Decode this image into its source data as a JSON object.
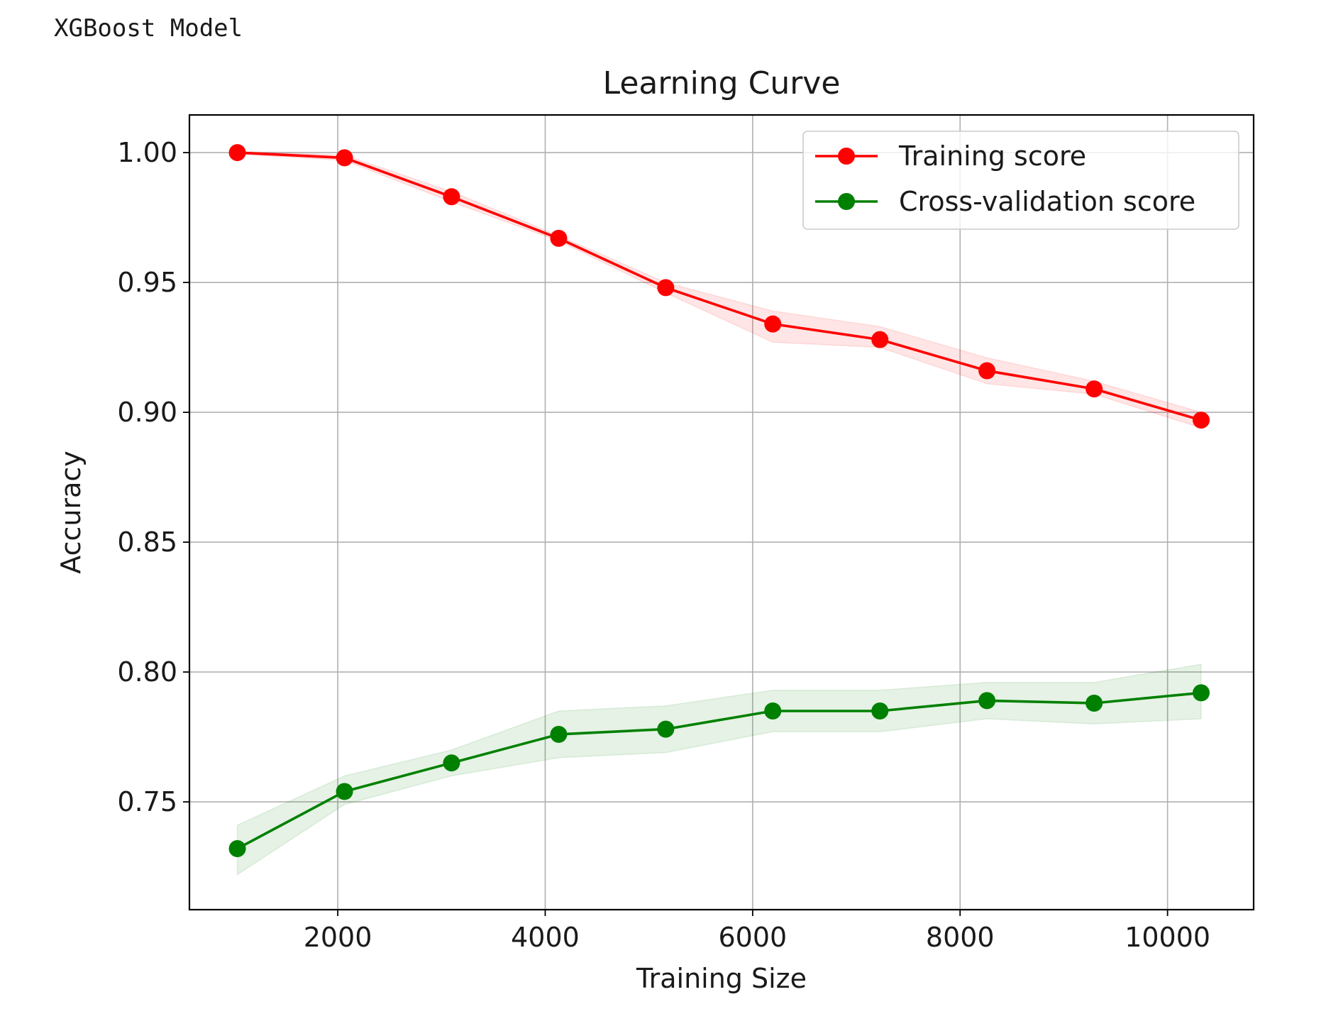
{
  "output_caption": "XGBoost Model",
  "chart_data": {
    "type": "line",
    "title": "Learning Curve",
    "xlabel": "Training Size",
    "ylabel": "Accuracy",
    "xlim": [
      570,
      10830
    ],
    "ylim": [
      0.7085,
      1.0145
    ],
    "xticks": [
      2000,
      4000,
      6000,
      8000,
      10000
    ],
    "xtick_labels": [
      "2000",
      "4000",
      "6000",
      "8000",
      "10000"
    ],
    "yticks": [
      0.75,
      0.8,
      0.85,
      0.9,
      0.95,
      1.0
    ],
    "ytick_labels": [
      "0.75",
      "0.80",
      "0.85",
      "0.90",
      "0.95",
      "1.00"
    ],
    "grid": true,
    "legend_position": "upper-right",
    "x": [
      1032,
      2065,
      3097,
      4130,
      5162,
      6194,
      7227,
      8259,
      9292,
      10324
    ],
    "series": [
      {
        "name": "Training score",
        "color": "#ff0000",
        "values": [
          1.0,
          0.998,
          0.983,
          0.967,
          0.948,
          0.934,
          0.928,
          0.916,
          0.909,
          0.897
        ],
        "band_lower": [
          0.9995,
          0.997,
          0.981,
          0.966,
          0.946,
          0.927,
          0.925,
          0.911,
          0.907,
          0.894
        ],
        "band_upper": [
          1.0005,
          0.999,
          0.985,
          0.968,
          0.95,
          0.939,
          0.933,
          0.921,
          0.912,
          0.9
        ]
      },
      {
        "name": "Cross-validation score",
        "color": "#008000",
        "values": [
          0.732,
          0.754,
          0.765,
          0.776,
          0.778,
          0.785,
          0.785,
          0.789,
          0.788,
          0.792
        ],
        "band_lower": [
          0.722,
          0.749,
          0.76,
          0.767,
          0.769,
          0.777,
          0.777,
          0.782,
          0.78,
          0.782
        ],
        "band_upper": [
          0.741,
          0.76,
          0.77,
          0.785,
          0.787,
          0.793,
          0.793,
          0.796,
          0.796,
          0.803
        ]
      }
    ]
  }
}
